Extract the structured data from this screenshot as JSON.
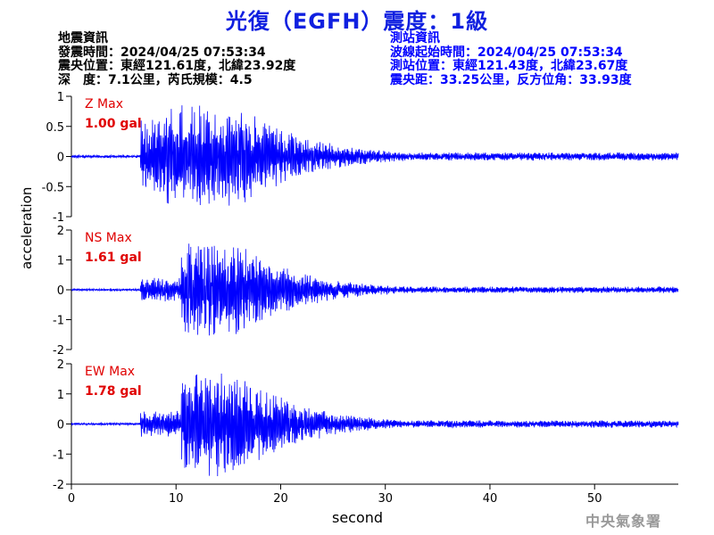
{
  "header": {
    "title": "光復（EGFH）震度：1級",
    "left_lines": [
      "地震資訊",
      "發震時間：2024/04/25 07:53:34",
      "震央位置：東經121.61度，北緯23.92度",
      "深　度：7.1公里，芮氏規模：4.5"
    ],
    "right_lines": [
      "測站資訊",
      "波線起始時間：2024/04/25 07:53:34",
      "測站位置：東經121.43度，北緯23.67度",
      "震央距：33.25公里，反方位角：33.93度"
    ]
  },
  "agency": "中央氣象署",
  "colors": {
    "title": "#1020e0",
    "trace": "#0000ff",
    "max_label": "#e00000",
    "right_info": "#0000ff"
  },
  "chart_data": {
    "type": "line",
    "xlabel": "second",
    "ylabel": "acceleration",
    "xlim": [
      0,
      58
    ],
    "x_ticks": [
      0,
      10,
      20,
      30,
      40,
      50
    ],
    "panels": [
      {
        "name": "Z",
        "max_label": "Z Max",
        "max_value": "1.00 gal",
        "ylim": [
          -1,
          1
        ],
        "y_ticks": [
          "1",
          "0.5",
          "0",
          "-0.5",
          "-1"
        ],
        "y_tick_values": [
          1,
          0.5,
          0,
          -0.5,
          -1
        ],
        "peak": 1.0
      },
      {
        "name": "NS",
        "max_label": "NS Max",
        "max_value": "1.61 gal",
        "ylim": [
          -2,
          2
        ],
        "y_ticks": [
          "2",
          "1",
          "0",
          "-1",
          "-2"
        ],
        "y_tick_values": [
          2,
          1,
          0,
          -1,
          -2
        ],
        "peak": 1.61
      },
      {
        "name": "EW",
        "max_label": "EW Max",
        "max_value": "1.78 gal",
        "ylim": [
          -2,
          2
        ],
        "y_ticks": [
          "2",
          "1",
          "0",
          "-1",
          "-2"
        ],
        "y_tick_values": [
          2,
          1,
          0,
          -1,
          -2
        ],
        "peak": 1.78
      }
    ],
    "p_arrival_s": 6.6,
    "s_arrival_s": 10.5,
    "grid": false,
    "legend": "none"
  }
}
